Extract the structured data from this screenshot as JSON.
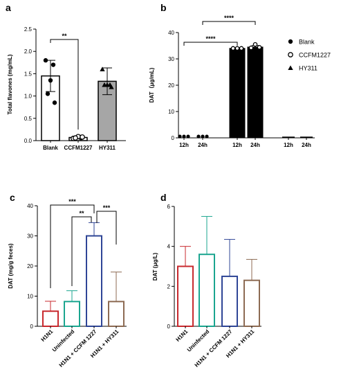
{
  "colors": {
    "axis": "#000000",
    "blank_bar": "#ffffff",
    "ccfm1227_bar": "#ffffff",
    "hy311_bar": "#a6a6a6",
    "dat_bar": "#000000",
    "h1n1": "#c8282d",
    "uninfected": "#1aa58f",
    "h1n1_ccfm1227": "#2e4596",
    "h1n1_hy311": "#8c6a52"
  },
  "chart_data": [
    {
      "panel": "a",
      "type": "bar",
      "categories": [
        "Blank",
        "CCFM1227",
        "HY311"
      ],
      "values": [
        1.45,
        0.07,
        1.33
      ],
      "errors": [
        0.35,
        0.03,
        0.3
      ],
      "points": [
        [
          1.8,
          1.7,
          1.35,
          1.05,
          0.85
        ],
        [
          0.05,
          0.07,
          0.09,
          0.06,
          0.08
        ],
        [
          1.6,
          1.25,
          1.25,
          1.25,
          1.2
        ]
      ],
      "point_markers": [
        "filled-circle",
        "open-circle",
        "filled-triangle"
      ],
      "xlabel": "",
      "ylabel": "Total flavones (mg/mL)",
      "ylim": [
        0,
        2.5
      ],
      "yticks": [
        "0.0",
        "0.5",
        "1.0",
        "1.5",
        "2.0",
        "2.5"
      ],
      "annotations": [
        {
          "text": "**",
          "between": [
            "Blank",
            "CCFM1227"
          ]
        }
      ]
    },
    {
      "panel": "b",
      "type": "bar",
      "groups": [
        "Blank",
        "CCFM1227",
        "HY311"
      ],
      "categories": [
        "12h",
        "24h",
        "12h",
        "24h",
        "12h",
        "24h"
      ],
      "values": [
        0.4,
        0.4,
        34,
        34.5,
        0,
        0
      ],
      "errors": [
        0,
        0,
        0.3,
        0.6,
        0,
        0
      ],
      "xlabel": "",
      "ylabel": "DAT（μg/mL)",
      "ylim": [
        0,
        40
      ],
      "yticks": [
        "0",
        "10",
        "20",
        "30",
        "40"
      ],
      "legend": [
        {
          "name": "Blank",
          "marker": "filled-circle"
        },
        {
          "name": "CCFM1227",
          "marker": "open-circle"
        },
        {
          "name": "HY311",
          "marker": "filled-triangle"
        }
      ],
      "legend_position": "right",
      "annotations": [
        {
          "text": "****",
          "between": [
            "12h",
            "12h"
          ]
        },
        {
          "text": "****",
          "between": [
            "24h",
            "24h"
          ]
        }
      ]
    },
    {
      "panel": "c",
      "type": "bar",
      "categories": [
        "H1N1",
        "Uninfected",
        "H1N1 + CCFM 1227",
        "H1N1 + HY311"
      ],
      "values": [
        5,
        8.2,
        30,
        8.2
      ],
      "errors": [
        3.3,
        3.6,
        4.4,
        9.8
      ],
      "xlabel": "",
      "ylabel": "DAT (mg/g feces)",
      "ylim": [
        0,
        40
      ],
      "yticks": [
        "0",
        "10",
        "20",
        "30",
        "40"
      ],
      "annotations": [
        {
          "text": "***",
          "between": [
            "H1N1",
            "H1N1 + CCFM 1227"
          ]
        },
        {
          "text": "**",
          "between": [
            "Uninfected",
            "H1N1 + CCFM 1227"
          ]
        },
        {
          "text": "***",
          "between": [
            "H1N1 + CCFM 1227",
            "H1N1 + HY311"
          ]
        }
      ]
    },
    {
      "panel": "d",
      "type": "bar",
      "categories": [
        "H1N1",
        "Uninfected",
        "H1N1 + CCFM 1227",
        "H1N1 + HY311"
      ],
      "values": [
        3.0,
        3.6,
        2.5,
        2.3
      ],
      "errors": [
        1.0,
        1.9,
        1.85,
        1.05
      ],
      "xlabel": "",
      "ylabel": "DAT (μg/L)",
      "ylim": [
        0,
        6
      ],
      "yticks": [
        "0",
        "2",
        "4",
        "6"
      ],
      "annotations": []
    }
  ]
}
